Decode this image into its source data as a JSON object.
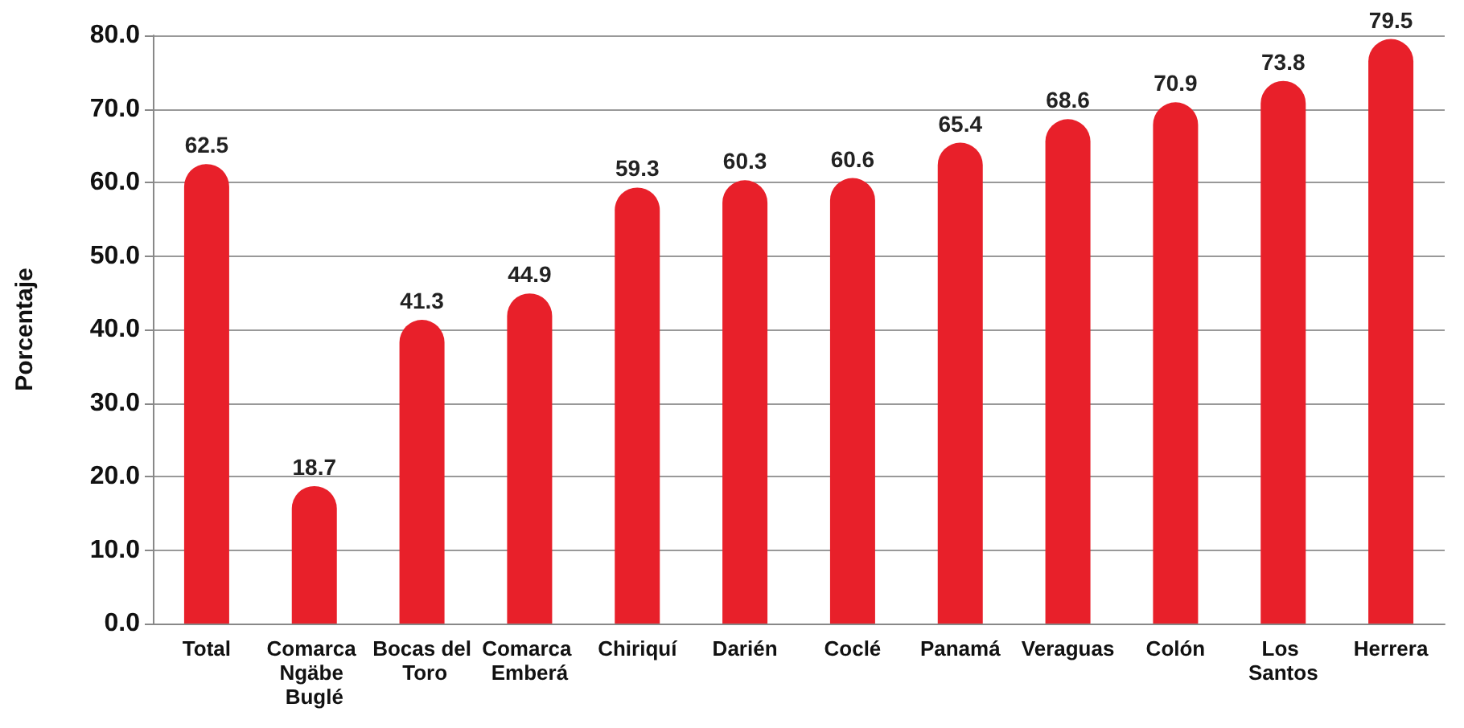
{
  "chart_data": {
    "type": "bar",
    "ylabel": "Porcentaje",
    "categories": [
      "Total",
      "Comarca Ngäbe Buglé",
      "Bocas del Toro",
      "Comarca Emberá",
      "Chiriquí",
      "Darién",
      "Coclé",
      "Panamá",
      "Veraguas",
      "Colón",
      "Los Santos",
      "Herrera"
    ],
    "values": [
      62.5,
      18.7,
      41.3,
      44.9,
      59.3,
      60.3,
      60.6,
      65.4,
      68.6,
      70.9,
      73.8,
      79.5
    ],
    "color": "#e8202a",
    "ylim": [
      0,
      80
    ],
    "yticks": [
      {
        "value": 0,
        "label": "0.0"
      },
      {
        "value": 10,
        "label": "10.0"
      },
      {
        "value": 20,
        "label": "20.0"
      },
      {
        "value": 30,
        "label": "30.0"
      },
      {
        "value": 40,
        "label": "40.0"
      },
      {
        "value": 50,
        "label": "50.0"
      },
      {
        "value": 60,
        "label": "60.0"
      },
      {
        "value": 70,
        "label": "70.0"
      },
      {
        "value": 80,
        "label": "80.0"
      }
    ],
    "grid": "y",
    "data_labels": true
  }
}
